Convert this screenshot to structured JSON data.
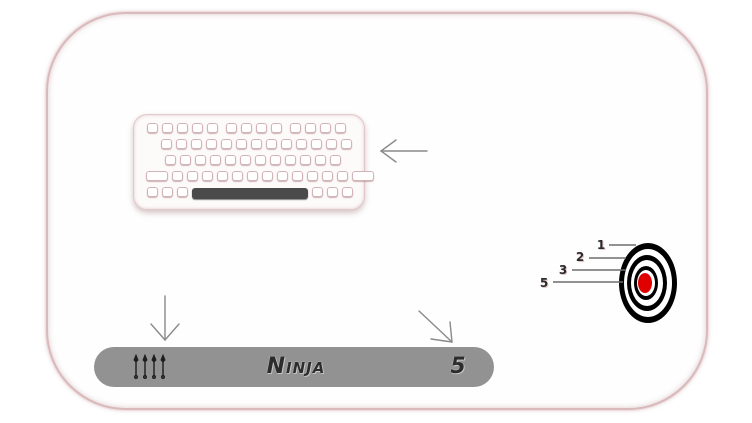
{
  "game": {
    "mode_label": "Ninja",
    "score": "5",
    "weapon_icon": "kunai-icon",
    "kunai_count": 4
  },
  "target": {
    "ring_labels": [
      "1",
      "2",
      "3",
      "5"
    ],
    "bullseye_color": "#e00000",
    "ring_color": "#000000"
  },
  "colors": {
    "hud_bar": "#929292",
    "card_border": "#d9b9bb",
    "spacebar": "#4a4a4a"
  }
}
